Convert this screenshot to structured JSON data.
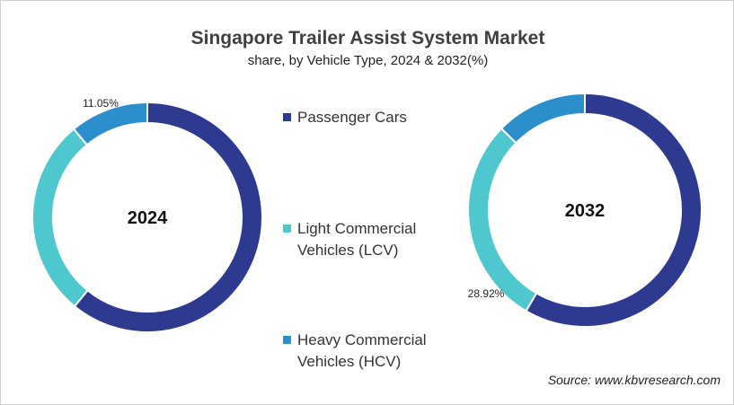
{
  "chart_data": {
    "type": "pie",
    "title": "Singapore Trailer Assist System Market",
    "subtitle": "share, by Vehicle Type, 2024 & 2032(%)",
    "legend_position": "center",
    "categories": [
      "Passenger Cars",
      "Light Commercial Vehicles (LCV)",
      "Heavy Commercial Vehicles (HCV)"
    ],
    "colors": [
      "#2e3a8f",
      "#4fc7cf",
      "#2b8fcc"
    ],
    "charts": [
      {
        "label": "2024",
        "values": [
          60.9,
          28.05,
          11.05
        ],
        "data_labels": [
          "",
          "",
          "11.05%"
        ]
      },
      {
        "label": "2032",
        "values": [
          58.4,
          28.92,
          12.68
        ],
        "data_labels": [
          "",
          "28.92%",
          ""
        ]
      }
    ]
  },
  "legend": [
    {
      "line1": "Passenger Cars",
      "line2": ""
    },
    {
      "line1": "Light Commercial",
      "line2": "Vehicles (LCV)"
    },
    {
      "line1": "Heavy Commercial",
      "line2": "Vehicles (HCV)"
    }
  ],
  "source": "Source: www.kbvresearch.com"
}
